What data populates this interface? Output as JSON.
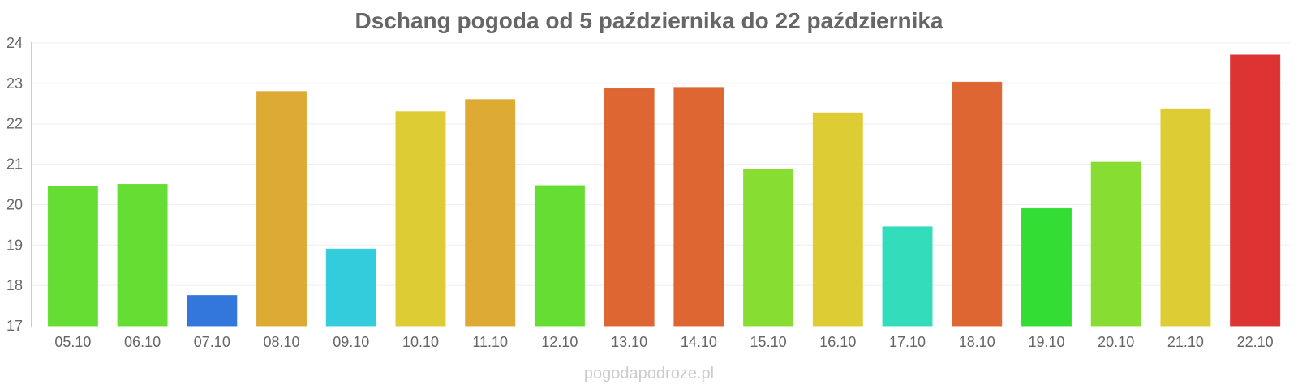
{
  "title": "Dschang pogoda od 5 października do 22 października",
  "watermark": "pogodapodroze.pl",
  "chart_data": {
    "type": "bar",
    "categories": [
      "05.10",
      "06.10",
      "07.10",
      "08.10",
      "09.10",
      "10.10",
      "11.10",
      "12.10",
      "13.10",
      "14.10",
      "15.10",
      "16.10",
      "17.10",
      "18.10",
      "19.10",
      "20.10",
      "21.10",
      "22.10"
    ],
    "values": [
      20.45,
      20.5,
      17.75,
      22.8,
      18.9,
      22.3,
      22.6,
      20.47,
      22.87,
      22.9,
      20.87,
      22.27,
      19.45,
      23.03,
      19.9,
      21.05,
      22.37,
      23.7
    ],
    "colors": [
      "#66dd33",
      "#66dd33",
      "#3377dd",
      "#ddaa33",
      "#33ccdd",
      "#ddcc33",
      "#ddaa33",
      "#66dd33",
      "#dd6633",
      "#dd6633",
      "#88dd33",
      "#ddcc33",
      "#33ddbb",
      "#dd6633",
      "#33dd33",
      "#88dd33",
      "#ddcc33",
      "#dd3333"
    ],
    "ylim": [
      17,
      24
    ],
    "yticks": [
      17,
      18,
      19,
      20,
      21,
      22,
      23,
      24
    ],
    "grid": true,
    "xlabel": "",
    "ylabel": ""
  }
}
